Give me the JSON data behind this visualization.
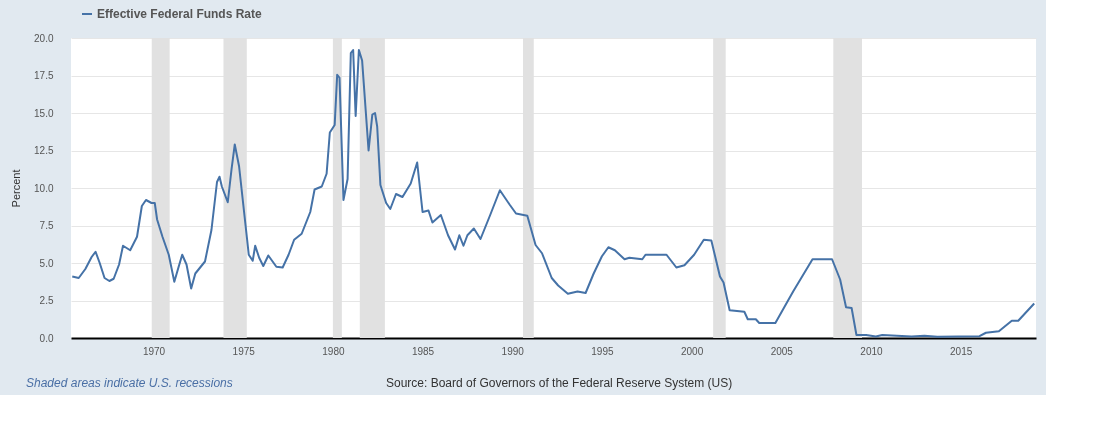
{
  "chart_data": {
    "type": "line",
    "ylabel": "Percent",
    "legend": "top left",
    "grid": "y",
    "marker": "none",
    "line_style": "solid",
    "xlim": [
      1965.4,
      2019.2
    ],
    "xticks": [
      1970,
      1975,
      1980,
      1985,
      1990,
      1995,
      2000,
      2005,
      2010,
      2015
    ],
    "ylim": [
      0,
      20
    ],
    "yticks": [
      {
        "value": 0,
        "label": "0.0"
      },
      {
        "value": 2.5,
        "label": "2.5"
      },
      {
        "value": 5,
        "label": "5.0"
      },
      {
        "value": 7.5,
        "label": "7.5"
      },
      {
        "value": 10,
        "label": "10.0"
      },
      {
        "value": 12.5,
        "label": "12.5"
      },
      {
        "value": 15,
        "label": "15.0"
      },
      {
        "value": 17.5,
        "label": "17.5"
      },
      {
        "value": 20,
        "label": "20.0"
      }
    ],
    "x": [
      1965.47,
      1965.83,
      1966.2,
      1966.55,
      1966.77,
      1967.0,
      1967.27,
      1967.54,
      1967.78,
      1968.08,
      1968.3,
      1968.7,
      1969.08,
      1969.35,
      1969.58,
      1969.89,
      1970.07,
      1970.2,
      1970.5,
      1970.85,
      1971.16,
      1971.39,
      1971.6,
      1971.84,
      1972.1,
      1972.33,
      1972.87,
      1973.23,
      1973.54,
      1973.68,
      1973.81,
      1974.14,
      1974.35,
      1974.53,
      1974.77,
      1975.22,
      1975.31,
      1975.53,
      1975.67,
      1975.89,
      1976.12,
      1976.4,
      1976.85,
      1977.2,
      1977.53,
      1977.84,
      1978.26,
      1978.74,
      1978.98,
      1979.38,
      1979.65,
      1979.83,
      1980.1,
      1980.24,
      1980.37,
      1980.59,
      1980.82,
      1981.0,
      1981.13,
      1981.27,
      1981.45,
      1981.63,
      1981.99,
      1982.2,
      1982.35,
      1982.47,
      1982.65,
      1982.97,
      1983.2,
      1983.52,
      1983.88,
      1984.34,
      1984.7,
      1985.0,
      1985.33,
      1985.55,
      1986.02,
      1986.42,
      1986.81,
      1987.05,
      1987.28,
      1987.5,
      1987.86,
      1988.23,
      1988.77,
      1989.31,
      1989.85,
      1990.21,
      1990.84,
      1991.3,
      1991.66,
      1992.2,
      1992.56,
      1993.1,
      1993.64,
      1994.09,
      1994.54,
      1995.0,
      1995.36,
      1995.72,
      1996.26,
      1996.53,
      1997.25,
      1997.43,
      1998.6,
      1999.15,
      1999.6,
      2000.14,
      2000.68,
      2001.1,
      2001.58,
      2001.78,
      2002.12,
      2002.94,
      2003.13,
      2003.58,
      2003.77,
      2004.67,
      2005.66,
      2006.74,
      2007.83,
      2008.28,
      2008.61,
      2008.92,
      2009.19,
      2009.73,
      2010.27,
      2010.63,
      2012.26,
      2012.98,
      2013.7,
      2016.05,
      2016.41,
      2017.13,
      2017.85,
      2018.21,
      2019.1
    ],
    "series": [
      {
        "name": "Effective Federal Funds Rate",
        "color": "#4572a7",
        "values": [
          4.1,
          4.0,
          4.6,
          5.4,
          5.75,
          5.0,
          4.0,
          3.8,
          3.95,
          4.9,
          6.15,
          5.85,
          6.75,
          8.8,
          9.2,
          9.0,
          9.0,
          7.9,
          6.75,
          5.55,
          3.75,
          4.7,
          5.55,
          4.9,
          3.3,
          4.3,
          5.1,
          7.2,
          10.4,
          10.75,
          10.1,
          9.05,
          11.25,
          12.9,
          11.45,
          6.55,
          5.55,
          5.15,
          6.15,
          5.35,
          4.8,
          5.5,
          4.75,
          4.7,
          5.55,
          6.55,
          6.95,
          8.4,
          9.9,
          10.1,
          10.95,
          13.7,
          14.2,
          17.55,
          17.35,
          9.2,
          10.6,
          19.0,
          19.2,
          14.8,
          19.2,
          18.5,
          12.5,
          14.9,
          15.0,
          14.1,
          10.2,
          9.0,
          8.6,
          9.6,
          9.4,
          10.3,
          11.7,
          8.4,
          8.5,
          7.7,
          8.2,
          6.85,
          5.9,
          6.85,
          6.15,
          6.85,
          7.3,
          6.6,
          8.2,
          9.85,
          8.9,
          8.3,
          8.15,
          6.2,
          5.65,
          4.0,
          3.5,
          2.95,
          3.1,
          3.0,
          4.3,
          5.45,
          6.05,
          5.85,
          5.25,
          5.35,
          5.25,
          5.55,
          5.55,
          4.7,
          4.85,
          5.55,
          6.55,
          6.5,
          4.1,
          3.7,
          1.85,
          1.75,
          1.25,
          1.25,
          1.0,
          1.0,
          3.1,
          5.25,
          5.25,
          3.9,
          2.05,
          2.0,
          0.2,
          0.2,
          0.1,
          0.2,
          0.1,
          0.15,
          0.08,
          0.12,
          0.35,
          0.45,
          1.15,
          1.15,
          2.3
        ]
      }
    ],
    "bands": [
      {
        "axis": "x",
        "from": 1969.9,
        "to": 1970.9,
        "color": "#e1e1e1"
      },
      {
        "axis": "x",
        "from": 1973.9,
        "to": 1975.2,
        "color": "#e1e1e1"
      },
      {
        "axis": "x",
        "from": 1980.0,
        "to": 1980.5,
        "color": "#e1e1e1"
      },
      {
        "axis": "x",
        "from": 1981.5,
        "to": 1982.9,
        "color": "#e1e1e1"
      },
      {
        "axis": "x",
        "from": 1990.6,
        "to": 1991.2,
        "color": "#e1e1e1"
      },
      {
        "axis": "x",
        "from": 2001.2,
        "to": 2001.9,
        "color": "#e1e1e1"
      },
      {
        "axis": "x",
        "from": 2007.9,
        "to": 2009.5,
        "color": "#e1e1e1"
      }
    ],
    "annotations": [
      "Shaded areas indicate U.S. recessions",
      "Source: Board of Governors of the Federal Reserve System (US)"
    ]
  }
}
